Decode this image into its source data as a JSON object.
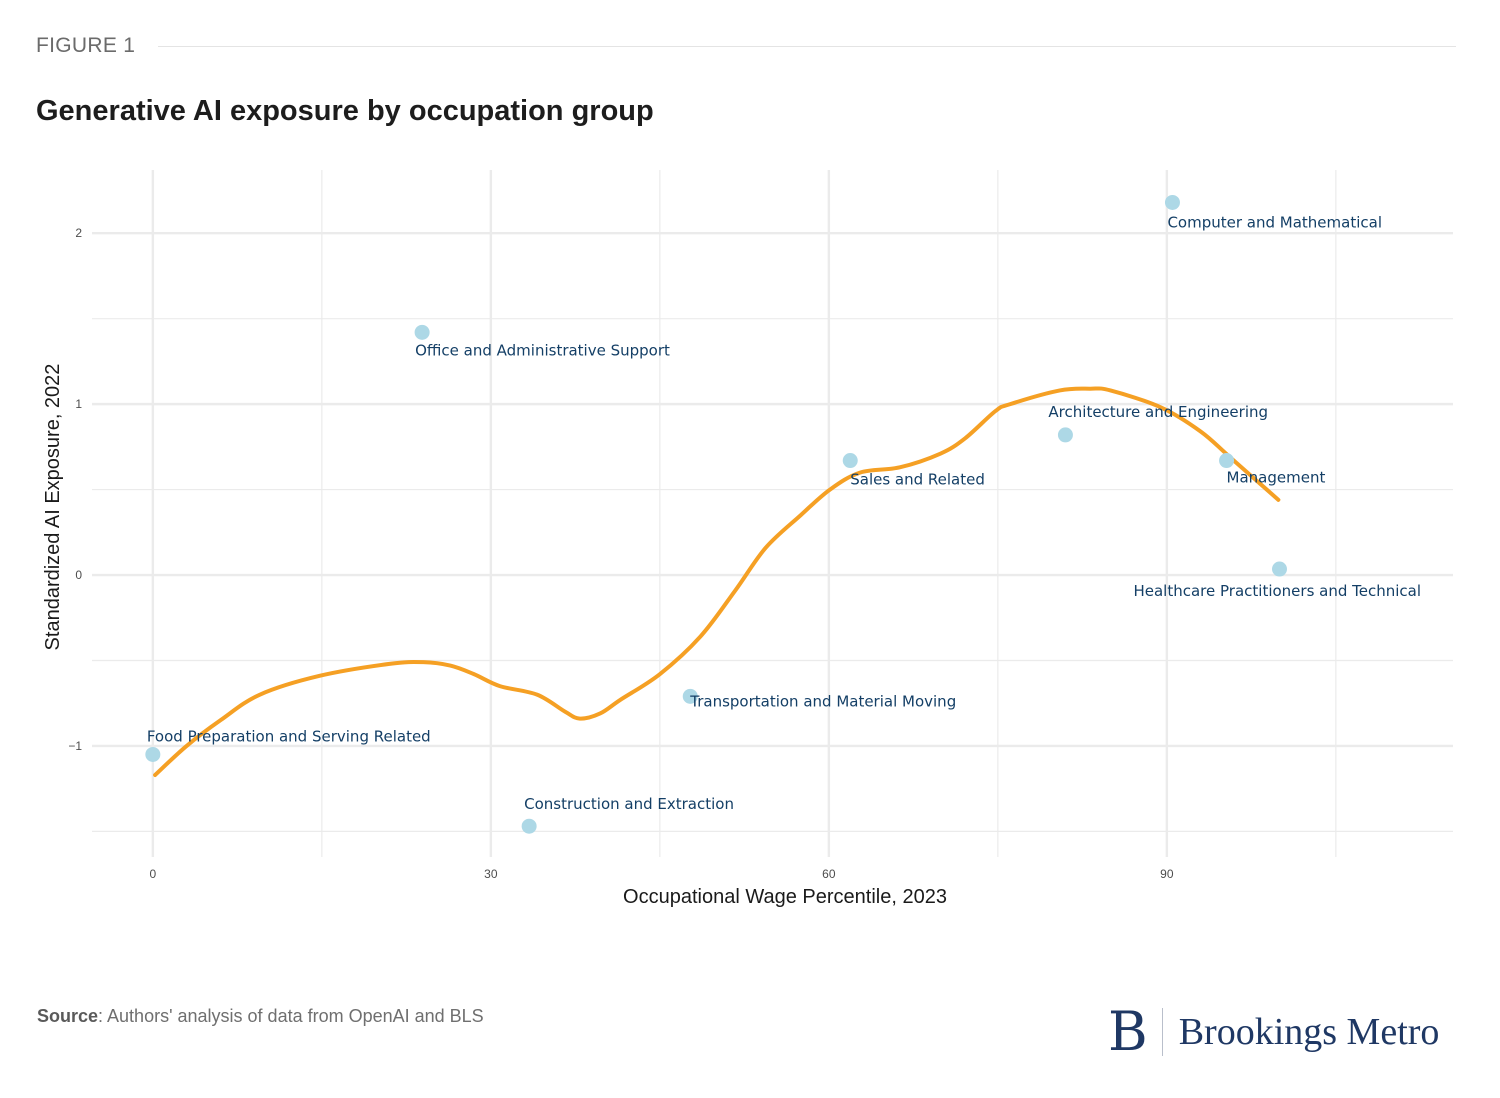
{
  "figure_label": "FIGURE 1",
  "title": "Generative AI exposure by occupation group",
  "source": {
    "label": "Source",
    "text": ": Authors' analysis of data from OpenAI and BLS"
  },
  "logo": {
    "mark": "B",
    "text": "Brookings Metro"
  },
  "colors": {
    "point": "#add8e6",
    "smooth_line": "#f5a024",
    "label": "#143f66",
    "grid": "#ebebeb",
    "brand": "#1f3864"
  },
  "chart_data": {
    "type": "scatter",
    "title": "Generative AI exposure by occupation group",
    "xlabel": "Occupational Wage Percentile, 2023",
    "ylabel": "Standardized AI Exposure, 2022",
    "xlim": [
      -5.4,
      115.4
    ],
    "ylim": [
      -1.65,
      2.37
    ],
    "x_ticks": [
      0,
      30,
      60,
      90
    ],
    "x_minor_ticks": [
      15,
      45,
      75,
      105
    ],
    "y_ticks": [
      -1,
      0,
      1,
      2
    ],
    "y_tick_labels": [
      "−1",
      "0",
      "1",
      "2"
    ],
    "y_minor_ticks": [
      -1.5,
      -0.5,
      0.5,
      1.5
    ],
    "grid": true,
    "legend": "none",
    "points": [
      {
        "label": "Food Preparation and Serving Related",
        "x": 0.0,
        "y": -1.05
      },
      {
        "label": "Office and Administrative Support",
        "x": 23.9,
        "y": 1.42
      },
      {
        "label": "Construction and Extraction",
        "x": 33.4,
        "y": -1.47
      },
      {
        "label": "Transportation and Material Moving",
        "x": 47.7,
        "y": -0.71
      },
      {
        "label": "Sales and Related",
        "x": 61.9,
        "y": 0.67
      },
      {
        "label": "Architecture and Engineering",
        "x": 81.0,
        "y": 0.82
      },
      {
        "label": "Computer and Mathematical",
        "x": 90.5,
        "y": 2.18
      },
      {
        "label": "Management",
        "x": 95.3,
        "y": 0.67
      },
      {
        "label": "Healthcare Practitioners and Technical",
        "x": 100.0,
        "y": 0.035
      }
    ],
    "smooth_line": {
      "name": "trend",
      "x": [
        0.2,
        3,
        6,
        9.5,
        14.8,
        21,
        24,
        26.4,
        28.5,
        30.8,
        34.1,
        36.6,
        37.9,
        39.7,
        41.5,
        45,
        48.6,
        51.7,
        54.4,
        57.5,
        60.1,
        62.8,
        66.3,
        69.9,
        72.1,
        74.8,
        76.1,
        80.5,
        83.2,
        85,
        89.5,
        93,
        95.6,
        99.9
      ],
      "y": [
        -1.17,
        -1.0,
        -0.85,
        -0.7,
        -0.59,
        -0.52,
        -0.51,
        -0.53,
        -0.58,
        -0.65,
        -0.7,
        -0.8,
        -0.84,
        -0.81,
        -0.73,
        -0.58,
        -0.36,
        -0.09,
        0.16,
        0.35,
        0.5,
        0.6,
        0.63,
        0.71,
        0.8,
        0.96,
        1.0,
        1.08,
        1.09,
        1.08,
        0.98,
        0.84,
        0.69,
        0.44
      ]
    }
  }
}
